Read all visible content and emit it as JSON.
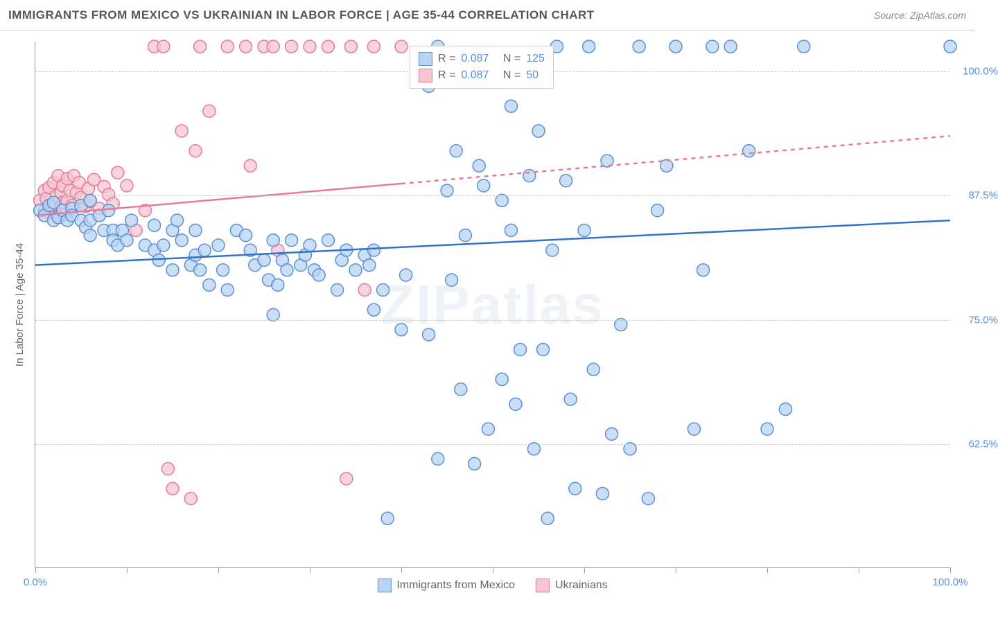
{
  "header": {
    "title": "IMMIGRANTS FROM MEXICO VS UKRAINIAN IN LABOR FORCE | AGE 35-44 CORRELATION CHART",
    "source": "Source: ZipAtlas.com"
  },
  "axes": {
    "ylabel": "In Labor Force | Age 35-44",
    "xlim": [
      0,
      100
    ],
    "ylim": [
      50,
      103
    ],
    "xtick_positions": [
      0,
      10,
      20,
      30,
      40,
      50,
      60,
      70,
      80,
      90,
      100
    ],
    "xtick_labels": {
      "0": "0.0%",
      "100": "100.0%"
    },
    "ytick_positions": [
      62.5,
      75.0,
      87.5,
      100.0
    ],
    "ytick_labels": [
      "62.5%",
      "75.0%",
      "87.5%",
      "100.0%"
    ],
    "grid_color": "#cccccc"
  },
  "watermark": "ZIPatlas",
  "legend_top": {
    "series1": {
      "r_label": "R =",
      "r_val": "0.087",
      "n_label": "N =",
      "n_val": "125"
    },
    "series2": {
      "r_label": "R =",
      "r_val": "0.087",
      "n_label": "N =",
      "n_val": "50"
    }
  },
  "legend_bottom": {
    "series1": "Immigrants from Mexico",
    "series2": "Ukrainians"
  },
  "styling": {
    "series1_fill": "#b8d4f0",
    "series1_stroke": "#5b8fd6",
    "series2_fill": "#f7c6d0",
    "series2_stroke": "#e67a9a",
    "marker_radius": 9,
    "marker_opacity": 0.75,
    "line1_color": "#3173c8",
    "line2_color": "#e67a9a",
    "line_width": 2.5,
    "title_color": "#555555",
    "tick_label_color": "#5b8fd6",
    "background": "#ffffff"
  },
  "trend_lines": {
    "series1": {
      "x1": 0,
      "y1": 80.5,
      "x2": 100,
      "y2": 85.0,
      "solid_until_x": 100
    },
    "series2": {
      "x1": 0,
      "y1": 85.5,
      "x2": 100,
      "y2": 93.5,
      "solid_until_x": 40
    }
  },
  "series1_points": [
    [
      0.5,
      86
    ],
    [
      1,
      85.5
    ],
    [
      1.5,
      86.5
    ],
    [
      2,
      85
    ],
    [
      2,
      86.8
    ],
    [
      2.5,
      85.3
    ],
    [
      3,
      86
    ],
    [
      3.5,
      85
    ],
    [
      4,
      86.2
    ],
    [
      4,
      85.5
    ],
    [
      5,
      86.5
    ],
    [
      5,
      85
    ],
    [
      5.5,
      84.3
    ],
    [
      6,
      87
    ],
    [
      6,
      85
    ],
    [
      6,
      83.5
    ],
    [
      7,
      85.5
    ],
    [
      7.5,
      84
    ],
    [
      8,
      86
    ],
    [
      8.5,
      84
    ],
    [
      8.5,
      83
    ],
    [
      9,
      82.5
    ],
    [
      9.5,
      84
    ],
    [
      10,
      83
    ],
    [
      10.5,
      85
    ],
    [
      12,
      82.5
    ],
    [
      13,
      84.5
    ],
    [
      13,
      82
    ],
    [
      13.5,
      81
    ],
    [
      14,
      82.5
    ],
    [
      15,
      84
    ],
    [
      15,
      80
    ],
    [
      15.5,
      85
    ],
    [
      16,
      83
    ],
    [
      17,
      80.5
    ],
    [
      17.5,
      84
    ],
    [
      17.5,
      81.5
    ],
    [
      18,
      80
    ],
    [
      18.5,
      82
    ],
    [
      19,
      78.5
    ],
    [
      20,
      82.5
    ],
    [
      20.5,
      80
    ],
    [
      21,
      78
    ],
    [
      22,
      84
    ],
    [
      23,
      83.5
    ],
    [
      23.5,
      82
    ],
    [
      24,
      80.5
    ],
    [
      25,
      81
    ],
    [
      25.5,
      79
    ],
    [
      26,
      83
    ],
    [
      26,
      75.5
    ],
    [
      26.5,
      78.5
    ],
    [
      27,
      81
    ],
    [
      27.5,
      80
    ],
    [
      28,
      83
    ],
    [
      29,
      80.5
    ],
    [
      29.5,
      81.5
    ],
    [
      30,
      82.5
    ],
    [
      30.5,
      80
    ],
    [
      31,
      79.5
    ],
    [
      32,
      83
    ],
    [
      33,
      78
    ],
    [
      33.5,
      81
    ],
    [
      34,
      82
    ],
    [
      35,
      80
    ],
    [
      36,
      81.5
    ],
    [
      36.5,
      80.5
    ],
    [
      37,
      82
    ],
    [
      37,
      76
    ],
    [
      38,
      78
    ],
    [
      38.5,
      55
    ],
    [
      40,
      74
    ],
    [
      40.5,
      79.5
    ],
    [
      43,
      98.5
    ],
    [
      43,
      73.5
    ],
    [
      44,
      61
    ],
    [
      44,
      102.5
    ],
    [
      45,
      88
    ],
    [
      45.5,
      79
    ],
    [
      46,
      92
    ],
    [
      46.5,
      68
    ],
    [
      47,
      83.5
    ],
    [
      48,
      60.5
    ],
    [
      48.5,
      90.5
    ],
    [
      49,
      88.5
    ],
    [
      49.5,
      64
    ],
    [
      51,
      87
    ],
    [
      51,
      69
    ],
    [
      52,
      96.5
    ],
    [
      52,
      84
    ],
    [
      52.5,
      66.5
    ],
    [
      53,
      72
    ],
    [
      54,
      89.5
    ],
    [
      54.5,
      62
    ],
    [
      55,
      94
    ],
    [
      55.5,
      72
    ],
    [
      56,
      55
    ],
    [
      56.5,
      82
    ],
    [
      57,
      102.5
    ],
    [
      58,
      89
    ],
    [
      58.5,
      67
    ],
    [
      59,
      58
    ],
    [
      60,
      84
    ],
    [
      60.5,
      102.5
    ],
    [
      61,
      70
    ],
    [
      62,
      57.5
    ],
    [
      62.5,
      91
    ],
    [
      63,
      63.5
    ],
    [
      64,
      74.5
    ],
    [
      65,
      62
    ],
    [
      66,
      102.5
    ],
    [
      67,
      57
    ],
    [
      68,
      86
    ],
    [
      69,
      90.5
    ],
    [
      70,
      102.5
    ],
    [
      72,
      64
    ],
    [
      73,
      80
    ],
    [
      74,
      102.5
    ],
    [
      76,
      102.5
    ],
    [
      78,
      92
    ],
    [
      80,
      64
    ],
    [
      82,
      66
    ],
    [
      84,
      102.5
    ],
    [
      100,
      102.5
    ]
  ],
  "series2_points": [
    [
      0.5,
      87
    ],
    [
      1,
      86
    ],
    [
      1,
      88
    ],
    [
      1.2,
      87.2
    ],
    [
      1.5,
      85.8
    ],
    [
      1.5,
      88.3
    ],
    [
      2,
      86.5
    ],
    [
      2,
      88.8
    ],
    [
      2.3,
      87.5
    ],
    [
      2.5,
      85.5
    ],
    [
      2.5,
      89.5
    ],
    [
      2.8,
      86.2
    ],
    [
      2.8,
      87.8
    ],
    [
      3,
      88.5
    ],
    [
      3,
      86.8
    ],
    [
      3.2,
      85.6
    ],
    [
      3.5,
      89.2
    ],
    [
      3.5,
      87
    ],
    [
      3.8,
      88
    ],
    [
      4,
      86.5
    ],
    [
      4.2,
      89.5
    ],
    [
      4.5,
      87.8
    ],
    [
      4.8,
      88.8
    ],
    [
      5,
      87.3
    ],
    [
      5.5,
      86.4
    ],
    [
      5.8,
      88.2
    ],
    [
      6,
      86.9
    ],
    [
      6.4,
      89.1
    ],
    [
      7,
      86.2
    ],
    [
      7.5,
      88.4
    ],
    [
      8,
      87.6
    ],
    [
      8.5,
      86.7
    ],
    [
      9,
      89.8
    ],
    [
      10,
      88.5
    ],
    [
      11,
      84
    ],
    [
      12,
      86
    ],
    [
      13,
      102.5
    ],
    [
      14,
      102.5
    ],
    [
      14.5,
      60
    ],
    [
      15,
      58
    ],
    [
      16,
      94
    ],
    [
      17,
      57
    ],
    [
      17.5,
      92
    ],
    [
      18,
      102.5
    ],
    [
      19,
      96
    ],
    [
      21,
      102.5
    ],
    [
      23,
      102.5
    ],
    [
      23.5,
      90.5
    ],
    [
      25,
      102.5
    ],
    [
      26,
      102.5
    ],
    [
      26.5,
      82
    ],
    [
      28,
      102.5
    ],
    [
      30,
      102.5
    ],
    [
      32,
      102.5
    ],
    [
      34,
      59
    ],
    [
      34.5,
      102.5
    ],
    [
      36,
      78
    ],
    [
      37,
      102.5
    ],
    [
      40,
      102.5
    ]
  ]
}
